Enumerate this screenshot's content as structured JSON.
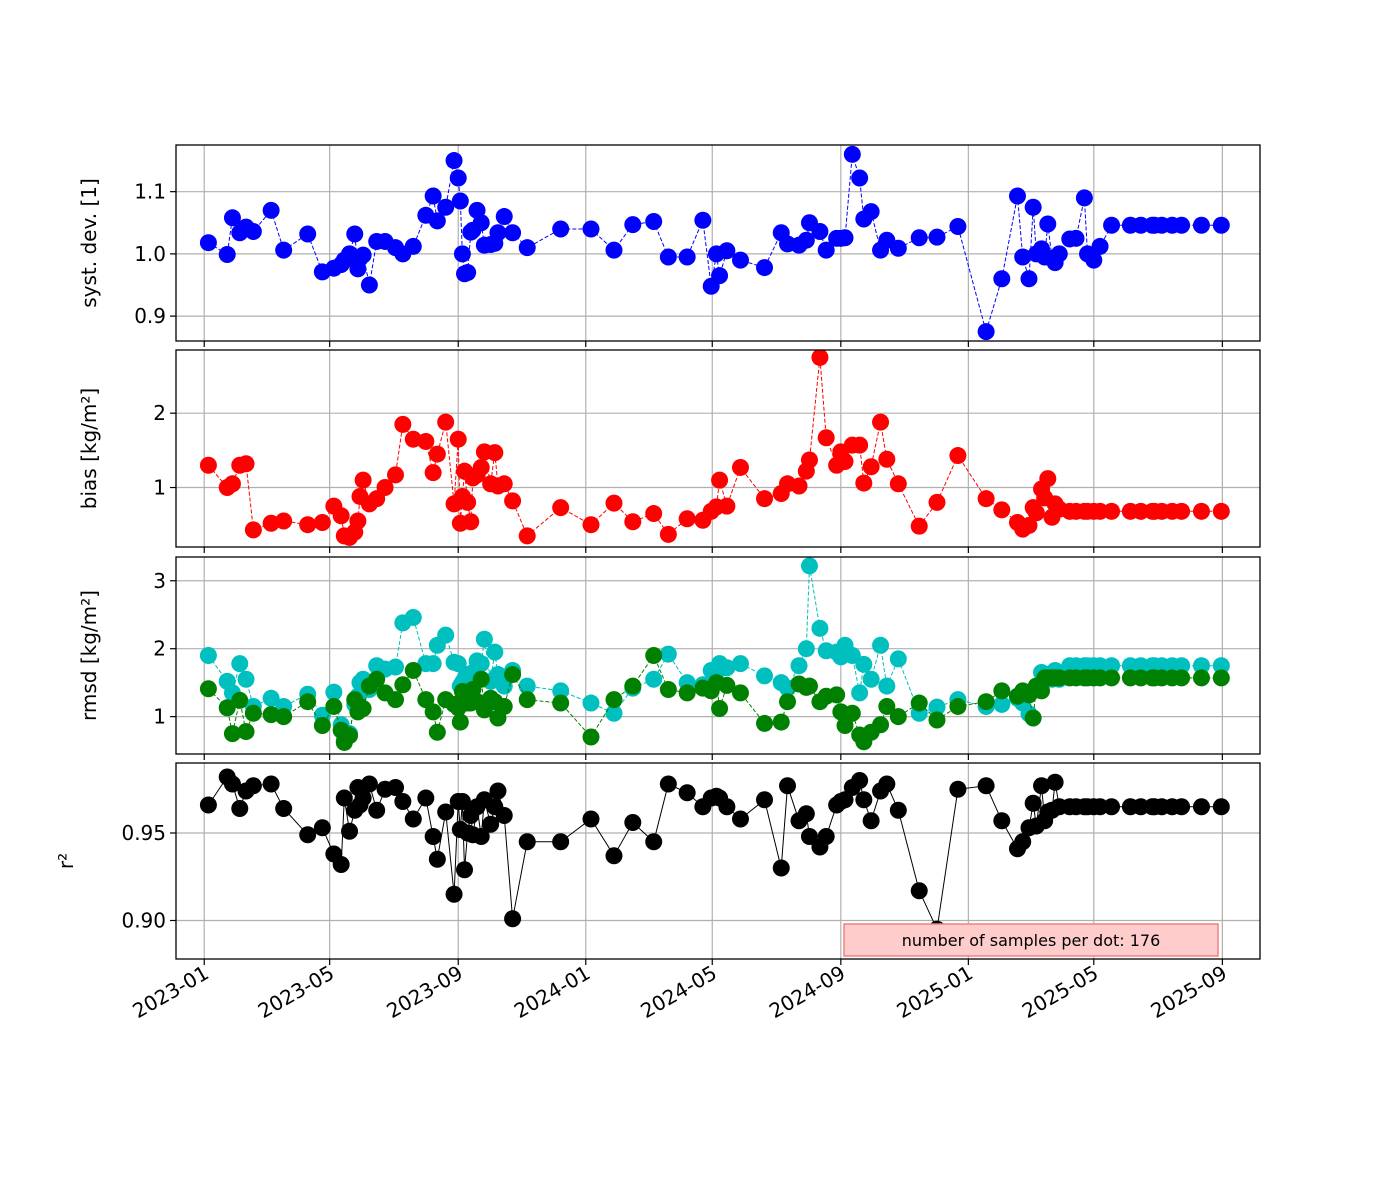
{
  "chart_data": {
    "type": "line",
    "x_axis": {
      "type": "date",
      "range": [
        "2022-12-05",
        "2025-10-07"
      ],
      "tick_values": [
        "2023-01-01",
        "2023-05-01",
        "2023-09-01",
        "2024-01-01",
        "2024-05-01",
        "2024-09-01",
        "2025-01-01",
        "2025-05-01",
        "2025-09-01"
      ],
      "tick_labels": [
        "2023-01",
        "2023-05",
        "2023-09",
        "2024-01",
        "2024-05",
        "2024-09",
        "2025-01",
        "2025-05",
        "2025-09"
      ]
    },
    "x": [
      "2023-01-05",
      "2023-01-23",
      "2023-01-28",
      "2023-02-04",
      "2023-02-10",
      "2023-02-17",
      "2023-03-06",
      "2023-03-18",
      "2023-04-10",
      "2023-04-24",
      "2023-05-05",
      "2023-05-12",
      "2023-05-15",
      "2023-05-20",
      "2023-05-25",
      "2023-05-28",
      "2023-05-30",
      "2023-06-02",
      "2023-06-08",
      "2023-06-15",
      "2023-06-23",
      "2023-07-03",
      "2023-07-10",
      "2023-07-20",
      "2023-08-01",
      "2023-08-08",
      "2023-08-12",
      "2023-08-20",
      "2023-08-28",
      "2023-09-01",
      "2023-09-03",
      "2023-09-05",
      "2023-09-07",
      "2023-09-10",
      "2023-09-13",
      "2023-09-15",
      "2023-09-19",
      "2023-09-23",
      "2023-09-26",
      "2023-10-02",
      "2023-10-06",
      "2023-10-09",
      "2023-10-15",
      "2023-10-23",
      "2023-11-06",
      "2023-12-08",
      "2024-01-06",
      "2024-01-28",
      "2024-02-15",
      "2024-03-06",
      "2024-03-20",
      "2024-04-07",
      "2024-04-22",
      "2024-04-30",
      "2024-05-05",
      "2024-05-08",
      "2024-05-15",
      "2024-05-28",
      "2024-06-20",
      "2024-07-06",
      "2024-07-12",
      "2024-07-23",
      "2024-07-30",
      "2024-08-02",
      "2024-08-12",
      "2024-08-18",
      "2024-08-28",
      "2024-09-01",
      "2024-09-05",
      "2024-09-12",
      "2024-09-19",
      "2024-09-23",
      "2024-09-30",
      "2024-10-09",
      "2024-10-15",
      "2024-10-26",
      "2024-11-15",
      "2024-12-02",
      "2024-12-22",
      "2025-01-18",
      "2025-02-02",
      "2025-02-17",
      "2025-02-22",
      "2025-02-28",
      "2025-03-04",
      "2025-03-07",
      "2025-03-12",
      "2025-03-15",
      "2025-03-18",
      "2025-03-22",
      "2025-03-25",
      "2025-03-29",
      "2025-04-08",
      "2025-04-14",
      "2025-04-22",
      "2025-04-25",
      "2025-05-01",
      "2025-05-07",
      "2025-05-18",
      "2025-06-05",
      "2025-06-15",
      "2025-06-26",
      "2025-06-28",
      "2025-07-05",
      "2025-07-15",
      "2025-07-24",
      "2025-08-12",
      "2025-08-31"
    ],
    "panels": [
      {
        "ylabel": "syst. dev. [1]",
        "ylim": [
          0.86,
          1.175
        ],
        "yticks": [
          0.9,
          1.0,
          1.1
        ],
        "ytick_labels": [
          "0.9",
          "1.0",
          "1.1"
        ],
        "color": "#0000ff",
        "series": [
          {
            "line": "dashed",
            "values": [
              1.018,
              0.999,
              1.058,
              1.034,
              1.043,
              1.036,
              1.07,
              1.006,
              1.032,
              0.971,
              0.977,
              0.983,
              0.99,
              1.0,
              1.032,
              0.976,
              0.993,
              0.998,
              0.95,
              1.02,
              1.02,
              1.01,
              1.0,
              1.012,
              1.062,
              1.093,
              1.053,
              1.075,
              1.15,
              1.122,
              1.085,
              1.0,
              0.968,
              0.97,
              1.035,
              1.038,
              1.07,
              1.05,
              1.014,
              1.015,
              1.017,
              1.034,
              1.06,
              1.034,
              1.01,
              1.04,
              1.04,
              1.006,
              1.047,
              1.052,
              0.995,
              0.995,
              1.054,
              0.948,
              1.0,
              0.965,
              1.005,
              0.99,
              0.978,
              1.034,
              1.016,
              1.014,
              1.022,
              1.05,
              1.036,
              1.006,
              1.025,
              1.025,
              1.026,
              1.16,
              1.122,
              1.056,
              1.068,
              1.006,
              1.022,
              1.009,
              1.026,
              1.027,
              1.044,
              0.875,
              0.96,
              1.093,
              0.995,
              0.96,
              1.075,
              1.0,
              1.008,
              0.995,
              1.048,
              0.993,
              0.986,
              1.0,
              1.024,
              1.025,
              1.09,
              1.0,
              0.99,
              1.012,
              1.046,
              1.046,
              1.046,
              1.046,
              1.046,
              1.046,
              1.046,
              1.046,
              1.046,
              1.046
            ]
          }
        ]
      },
      {
        "ylabel": "bias [kg/m²]",
        "ylim": [
          0.2,
          2.85
        ],
        "yticks": [
          1,
          2
        ],
        "ytick_labels": [
          "1",
          "2"
        ],
        "color": "#ff0000",
        "series": [
          {
            "line": "dashed",
            "values": [
              1.3,
              1.0,
              1.05,
              1.3,
              1.32,
              0.43,
              0.52,
              0.55,
              0.5,
              0.53,
              0.75,
              0.62,
              0.35,
              0.33,
              0.4,
              0.55,
              0.88,
              1.1,
              0.78,
              0.85,
              1.0,
              1.17,
              1.85,
              1.65,
              1.62,
              1.2,
              1.45,
              1.88,
              0.78,
              1.65,
              0.52,
              0.88,
              1.22,
              0.8,
              0.54,
              1.13,
              1.17,
              1.27,
              1.48,
              1.05,
              1.47,
              1.02,
              1.05,
              0.82,
              0.35,
              0.73,
              0.5,
              0.79,
              0.54,
              0.65,
              0.37,
              0.58,
              0.56,
              0.68,
              0.74,
              1.1,
              0.75,
              1.27,
              0.85,
              0.92,
              1.05,
              1.02,
              1.22,
              1.37,
              2.75,
              1.67,
              1.3,
              1.48,
              1.35,
              1.57,
              1.57,
              1.06,
              1.28,
              1.88,
              1.38,
              1.05,
              0.48,
              0.8,
              1.43,
              0.85,
              0.7,
              0.53,
              0.44,
              0.49,
              0.73,
              0.66,
              0.98,
              0.86,
              1.12,
              0.6,
              0.78,
              0.71,
              0.68,
              0.68,
              0.68,
              0.68,
              0.68,
              0.68,
              0.68,
              0.68,
              0.68,
              0.68,
              0.68,
              0.68,
              0.68,
              0.68,
              0.68,
              0.68
            ]
          }
        ]
      },
      {
        "ylabel": "rmsd [kg/m²]",
        "ylim": [
          0.45,
          3.35
        ],
        "yticks": [
          1,
          2,
          3
        ],
        "ytick_labels": [
          "1",
          "2",
          "3"
        ],
        "color": "#00bfbf",
        "series": [
          {
            "color": "#00bfbf",
            "line": "dashed",
            "values": [
              1.9,
              1.52,
              1.35,
              1.78,
              1.55,
              1.15,
              1.27,
              1.15,
              1.33,
              1.02,
              1.36,
              0.88,
              0.65,
              0.75,
              1.18,
              1.3,
              1.5,
              1.55,
              1.4,
              1.75,
              1.7,
              1.73,
              2.38,
              2.46,
              1.78,
              1.78,
              2.05,
              2.2,
              1.8,
              1.78,
              1.45,
              1.5,
              1.55,
              1.62,
              1.6,
              1.65,
              1.82,
              1.78,
              2.14,
              1.52,
              1.95,
              1.62,
              1.45,
              1.68,
              1.45,
              1.38,
              1.2,
              1.05,
              1.42,
              1.55,
              1.92,
              1.5,
              1.47,
              1.68,
              1.65,
              1.78,
              1.72,
              1.78,
              1.6,
              1.5,
              1.42,
              1.75,
              2.0,
              3.22,
              2.3,
              1.97,
              1.95,
              1.88,
              2.05,
              1.9,
              1.35,
              1.77,
              1.55,
              2.05,
              1.45,
              1.85,
              1.05,
              1.14,
              1.25,
              1.15,
              1.18,
              1.27,
              1.2,
              1.04,
              1.38,
              1.45,
              1.65,
              1.55,
              1.62,
              1.55,
              1.68,
              1.55,
              1.75,
              1.75,
              1.75,
              1.75,
              1.75,
              1.75,
              1.75,
              1.75,
              1.75,
              1.75,
              1.75,
              1.75,
              1.75,
              1.75,
              1.75,
              1.75
            ]
          },
          {
            "color": "#008000",
            "line": "dashed",
            "values": [
              1.41,
              1.13,
              0.75,
              1.24,
              0.78,
              1.05,
              1.03,
              1.0,
              1.22,
              0.87,
              1.15,
              0.8,
              0.62,
              0.72,
              1.25,
              1.07,
              1.15,
              1.12,
              1.45,
              1.55,
              1.35,
              1.25,
              1.47,
              1.68,
              1.25,
              1.07,
              0.77,
              1.25,
              1.18,
              1.13,
              0.92,
              1.37,
              1.3,
              1.2,
              1.2,
              1.4,
              1.22,
              1.55,
              1.1,
              1.27,
              1.22,
              0.98,
              1.15,
              1.62,
              1.25,
              1.2,
              0.7,
              1.25,
              1.45,
              1.9,
              1.4,
              1.35,
              1.42,
              1.38,
              1.5,
              1.12,
              1.46,
              1.35,
              0.9,
              0.92,
              1.22,
              1.48,
              1.43,
              1.45,
              1.22,
              1.3,
              1.32,
              1.07,
              0.87,
              1.05,
              0.73,
              0.63,
              0.77,
              0.88,
              1.15,
              1.0,
              1.2,
              0.95,
              1.15,
              1.22,
              1.38,
              1.3,
              1.38,
              1.32,
              0.98,
              1.45,
              1.38,
              1.57,
              1.57,
              1.57,
              1.57,
              1.57,
              1.57,
              1.57,
              1.57,
              1.57,
              1.57,
              1.57,
              1.57,
              1.57,
              1.57,
              1.57,
              1.57,
              1.57,
              1.57,
              1.57,
              1.57,
              1.57
            ]
          }
        ]
      },
      {
        "ylabel": "r²",
        "ylim": [
          0.878,
          0.99
        ],
        "yticks": [
          0.9,
          0.95
        ],
        "ytick_labels": [
          "0.90",
          "0.95"
        ],
        "color": "#000000",
        "series": [
          {
            "line": "solid",
            "values": [
              0.966,
              0.982,
              0.978,
              0.964,
              0.974,
              0.977,
              0.978,
              0.964,
              0.949,
              0.953,
              0.938,
              0.932,
              0.97,
              0.951,
              0.963,
              0.976,
              0.966,
              0.97,
              0.978,
              0.963,
              0.975,
              0.976,
              0.968,
              0.958,
              0.97,
              0.948,
              0.935,
              0.962,
              0.915,
              0.968,
              0.952,
              0.968,
              0.929,
              0.95,
              0.96,
              0.949,
              0.965,
              0.948,
              0.969,
              0.955,
              0.965,
              0.974,
              0.96,
              0.901,
              0.945,
              0.945,
              0.958,
              0.937,
              0.956,
              0.945,
              0.978,
              0.973,
              0.965,
              0.97,
              0.971,
              0.97,
              0.965,
              0.958,
              0.969,
              0.93,
              0.977,
              0.957,
              0.961,
              0.948,
              0.942,
              0.948,
              0.966,
              0.968,
              0.969,
              0.976,
              0.98,
              0.969,
              0.957,
              0.974,
              0.978,
              0.963,
              0.917,
              0.895,
              0.975,
              0.977,
              0.957,
              0.941,
              0.945,
              0.953,
              0.967,
              0.954,
              0.977,
              0.957,
              0.962,
              0.963,
              0.979,
              0.965,
              0.965,
              0.965,
              0.965,
              0.965,
              0.965,
              0.965,
              0.965,
              0.965,
              0.965,
              0.965,
              0.965,
              0.965,
              0.965,
              0.965,
              0.965,
              0.965
            ]
          }
        ]
      }
    ],
    "annotation": "number of samples per dot: 176",
    "grid": true
  }
}
